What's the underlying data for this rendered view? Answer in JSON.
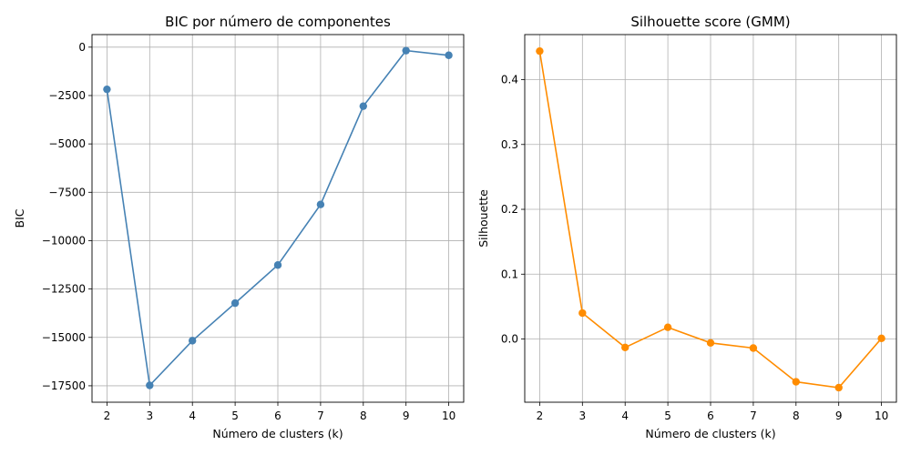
{
  "chart_data": [
    {
      "type": "line",
      "title": "BIC por número de componentes",
      "xlabel": "Número de clusters (k)",
      "ylabel": "BIC",
      "x": [
        2,
        3,
        4,
        5,
        6,
        7,
        8,
        9,
        10
      ],
      "xticks": [
        2,
        3,
        4,
        5,
        6,
        7,
        8,
        9,
        10
      ],
      "xlim": [
        1.65,
        10.35
      ],
      "yticks": [
        0,
        -2500,
        -5000,
        -7500,
        -10000,
        -12500,
        -15000,
        -17500
      ],
      "ylim": [
        -18350,
        650
      ],
      "grid": true,
      "series": [
        {
          "color": "#4682b4",
          "values": [
            -2180,
            -17480,
            -15170,
            -13230,
            -11260,
            -8130,
            -3050,
            -180,
            -420
          ]
        }
      ]
    },
    {
      "type": "line",
      "title": "Silhouette score (GMM)",
      "xlabel": "Número de clusters (k)",
      "ylabel": "Silhouette",
      "x": [
        2,
        3,
        4,
        5,
        6,
        7,
        8,
        9,
        10
      ],
      "xticks": [
        2,
        3,
        4,
        5,
        6,
        7,
        8,
        9,
        10
      ],
      "xlim": [
        1.65,
        10.35
      ],
      "yticks": [
        0.4,
        0.3,
        0.2,
        0.1,
        0.0
      ],
      "ylim": [
        -0.0975,
        0.4695
      ],
      "grid": true,
      "series": [
        {
          "color": "#ff8c00",
          "values": [
            0.444,
            0.04,
            -0.013,
            0.018,
            -0.006,
            -0.014,
            -0.066,
            -0.075,
            0.001
          ]
        }
      ]
    }
  ]
}
